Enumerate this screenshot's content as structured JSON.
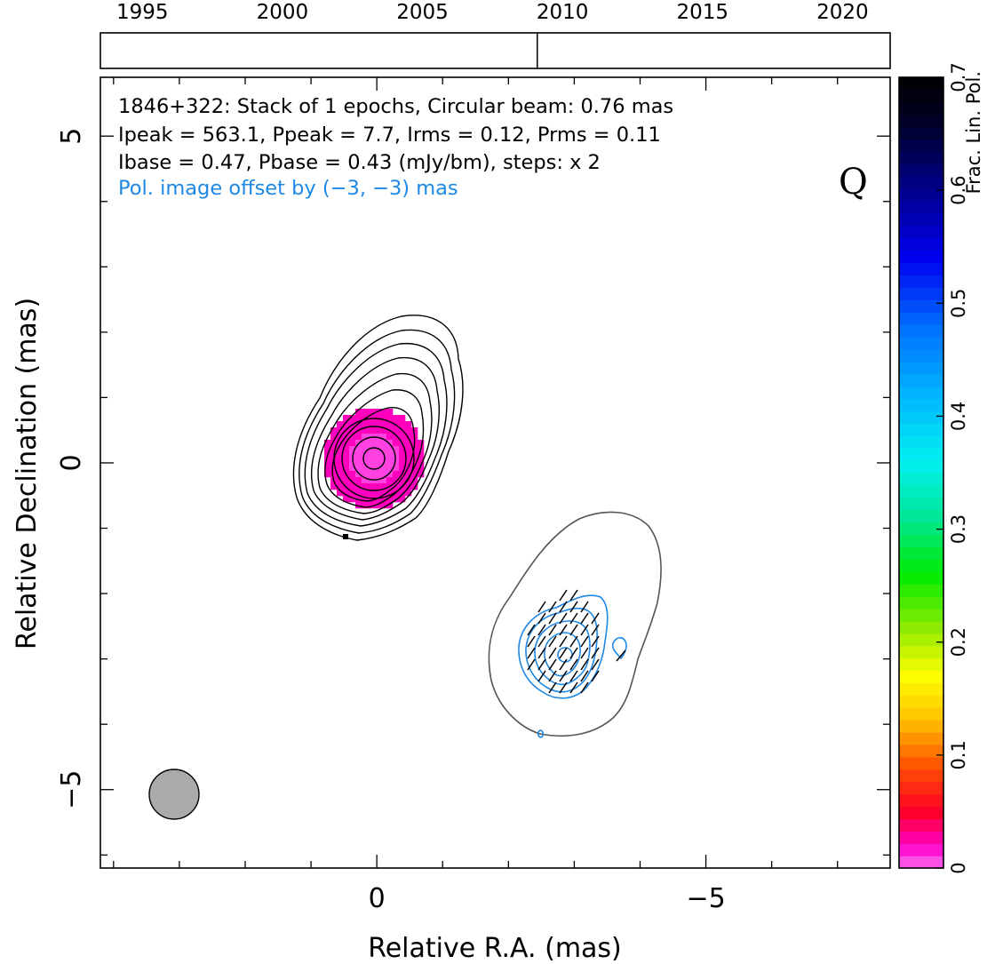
{
  "chart_data": {
    "type": "contour",
    "source": "1846+322",
    "band": "Q",
    "info_lines": [
      "1846+322: Stack of 1 epochs, Circular beam: 0.76 mas",
      "Ipeak = 563.1, Ppeak = 7.7, Irms = 0.12, Prms = 0.11",
      "Ibase = 0.47, Pbase = 0.43 (mJy/bm), steps: x 2"
    ],
    "pol_note": "Pol. image offset by (−3, −3) mas",
    "xlabel": "Relative R.A. (mas)",
    "ylabel": "Relative Declination (mas)",
    "xlim": [
      4.2,
      -7.8
    ],
    "ylim": [
      -6.2,
      5.9
    ],
    "xticks": [
      {
        "v": 0,
        "label": "0"
      },
      {
        "v": -5,
        "label": "−5"
      }
    ],
    "yticks": [
      {
        "v": 5,
        "label": "5"
      },
      {
        "v": 0,
        "label": "0"
      },
      {
        "v": -5,
        "label": "−5"
      }
    ],
    "timeline": {
      "range": [
        1993.5,
        2021.7
      ],
      "ticks": [
        1995,
        2000,
        2005,
        2010,
        2015,
        2020
      ],
      "epochs": [
        2009.1
      ]
    },
    "colorbar": {
      "label": "Frac. Lin. Pol.",
      "range": [
        0,
        0.7
      ],
      "ticks": [
        {
          "v": 0,
          "label": "0"
        },
        {
          "v": 0.1,
          "label": "0.1"
        },
        {
          "v": 0.2,
          "label": "0.2"
        },
        {
          "v": 0.3,
          "label": "0.3"
        },
        {
          "v": 0.4,
          "label": "0.4"
        },
        {
          "v": 0.5,
          "label": "0.5"
        },
        {
          "v": 0.6,
          "label": "0.6"
        },
        {
          "v": 0.7,
          "label": "0.7"
        }
      ]
    },
    "beam_diameter_mas": 0.76,
    "colors": {
      "stokes_i": "#000000",
      "pol_contour": "#1e88e5",
      "pol_outline": "#555555",
      "frac_pol_map": "#ff00cc",
      "beam": "#aaaaaa"
    }
  }
}
